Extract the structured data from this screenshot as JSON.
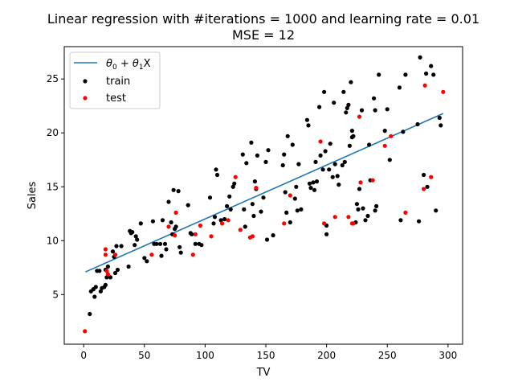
{
  "chart_data": {
    "type": "scatter",
    "title_line1": "Linear regression with #iterations = 1000 and learning rate = 0.01",
    "title_line2": "MSE = 12",
    "xlabel": "TV",
    "ylabel": "Sales",
    "xlim": [
      -16,
      312
    ],
    "ylim": [
      0.4,
      28
    ],
    "xticks": [
      0,
      50,
      100,
      150,
      200,
      250,
      300
    ],
    "yticks": [
      5,
      10,
      15,
      20,
      25
    ],
    "grid": false,
    "legend_position": "top-left",
    "fit_line": {
      "label": "θ0 + θ1X",
      "color": "#1f77b4",
      "points": [
        [
          1.4,
          7.1
        ],
        [
          296,
          21.8
        ]
      ]
    },
    "series": [
      {
        "name": "train",
        "color": "#000000",
        "points": [
          [
            5,
            3.2
          ],
          [
            6,
            5.3
          ],
          [
            8,
            5.5
          ],
          [
            9,
            4.8
          ],
          [
            10,
            5.7
          ],
          [
            11,
            7.2
          ],
          [
            13,
            7.2
          ],
          [
            14,
            5.3
          ],
          [
            15,
            5.6
          ],
          [
            17,
            5.7
          ],
          [
            18,
            7.3
          ],
          [
            18,
            5.9
          ],
          [
            19,
            6.6
          ],
          [
            20,
            7.6
          ],
          [
            22,
            6.6
          ],
          [
            24,
            9.0
          ],
          [
            25,
            8.5
          ],
          [
            26,
            7.0
          ],
          [
            27,
            9.5
          ],
          [
            28,
            7.3
          ],
          [
            31,
            9.5
          ],
          [
            37,
            7.6
          ],
          [
            38,
            10.9
          ],
          [
            39,
            10.7
          ],
          [
            40,
            10.8
          ],
          [
            42,
            9.6
          ],
          [
            43,
            10.4
          ],
          [
            44,
            10.1
          ],
          [
            47,
            11.6
          ],
          [
            50,
            8.4
          ],
          [
            52,
            8.1
          ],
          [
            57,
            11.8
          ],
          [
            58,
            9.7
          ],
          [
            60,
            9.7
          ],
          [
            63,
            9.7
          ],
          [
            64,
            8.6
          ],
          [
            65,
            11.9
          ],
          [
            67,
            9.7
          ],
          [
            68,
            9.2
          ],
          [
            70,
            13.6
          ],
          [
            72,
            11.7
          ],
          [
            73,
            10.6
          ],
          [
            74,
            14.7
          ],
          [
            75,
            11.1
          ],
          [
            76,
            11.3
          ],
          [
            78,
            14.6
          ],
          [
            79,
            9.4
          ],
          [
            80,
            8.9
          ],
          [
            86,
            13.3
          ],
          [
            88,
            10.7
          ],
          [
            89,
            10.6
          ],
          [
            92,
            9.7
          ],
          [
            95,
            9.7
          ],
          [
            97,
            9.6
          ],
          [
            104,
            14.0
          ],
          [
            107,
            11.6
          ],
          [
            108,
            12.2
          ],
          [
            109,
            16.6
          ],
          [
            110,
            16.1
          ],
          [
            113,
            11.9
          ],
          [
            116,
            12.0
          ],
          [
            118,
            13.2
          ],
          [
            120,
            14.1
          ],
          [
            121,
            12.9
          ],
          [
            123,
            15.0
          ],
          [
            124,
            15.3
          ],
          [
            131,
            18.0
          ],
          [
            132,
            12.9
          ],
          [
            133,
            11.3
          ],
          [
            134,
            17.2
          ],
          [
            138,
            19.1
          ],
          [
            139,
            13.4
          ],
          [
            140,
            12.3
          ],
          [
            141,
            15.5
          ],
          [
            142,
            14.8
          ],
          [
            143,
            17.9
          ],
          [
            146,
            12.7
          ],
          [
            148,
            14.0
          ],
          [
            150,
            17.3
          ],
          [
            151,
            10.1
          ],
          [
            152,
            18.4
          ],
          [
            156,
            10.5
          ],
          [
            164,
            17.0
          ],
          [
            165,
            18.0
          ],
          [
            166,
            14.5
          ],
          [
            167,
            12.6
          ],
          [
            168,
            19.7
          ],
          [
            170,
            11.7
          ],
          [
            172,
            18.9
          ],
          [
            174,
            13.9
          ],
          [
            175,
            15.0
          ],
          [
            176,
            12.8
          ],
          [
            177,
            17.1
          ],
          [
            179,
            12.9
          ],
          [
            184,
            21.2
          ],
          [
            185,
            20.7
          ],
          [
            186,
            15.3
          ],
          [
            187,
            14.9
          ],
          [
            189,
            15.4
          ],
          [
            190,
            14.7
          ],
          [
            191,
            17.3
          ],
          [
            192,
            15.5
          ],
          [
            194,
            22.4
          ],
          [
            195,
            17.9
          ],
          [
            197,
            16.6
          ],
          [
            198,
            23.8
          ],
          [
            199,
            18.3
          ],
          [
            200,
            10.6
          ],
          [
            200,
            11.4
          ],
          [
            202,
            16.6
          ],
          [
            203,
            19.0
          ],
          [
            205,
            15.9
          ],
          [
            206,
            22.8
          ],
          [
            207,
            17.1
          ],
          [
            209,
            16.0
          ],
          [
            210,
            15.2
          ],
          [
            213,
            17.0
          ],
          [
            214,
            23.8
          ],
          [
            215,
            17.3
          ],
          [
            216,
            21.9
          ],
          [
            217,
            22.3
          ],
          [
            218,
            22.6
          ],
          [
            219,
            18.8
          ],
          [
            220,
            24.7
          ],
          [
            221,
            19.6
          ],
          [
            221,
            20.2
          ],
          [
            222,
            19.7
          ],
          [
            224,
            11.7
          ],
          [
            225,
            13.4
          ],
          [
            226,
            12.9
          ],
          [
            227,
            14.8
          ],
          [
            229,
            22.1
          ],
          [
            230,
            13.0
          ],
          [
            232,
            11.9
          ],
          [
            234,
            12.3
          ],
          [
            235,
            18.9
          ],
          [
            236,
            15.6
          ],
          [
            239,
            23.2
          ],
          [
            240,
            22.1
          ],
          [
            240,
            12.8
          ],
          [
            241,
            13.2
          ],
          [
            243,
            25.4
          ],
          [
            248,
            20.2
          ],
          [
            250,
            22.2
          ],
          [
            252,
            17.5
          ],
          [
            260,
            24.2
          ],
          [
            261,
            11.9
          ],
          [
            263,
            20.1
          ],
          [
            265,
            25.4
          ],
          [
            275,
            20.8
          ],
          [
            276,
            11.8
          ],
          [
            277,
            27.0
          ],
          [
            280,
            16.1
          ],
          [
            282,
            25.5
          ],
          [
            283,
            15.0
          ],
          [
            286,
            26.2
          ],
          [
            288,
            25.4
          ],
          [
            290,
            12.8
          ],
          [
            293,
            21.4
          ],
          [
            294,
            20.7
          ]
        ]
      },
      {
        "name": "test",
        "color": "#ff0000",
        "points": [
          [
            1,
            1.6
          ],
          [
            18,
            8.7
          ],
          [
            18,
            9.2
          ],
          [
            19,
            7.2
          ],
          [
            20,
            6.9
          ],
          [
            26,
            8.7
          ],
          [
            56,
            8.7
          ],
          [
            70,
            11.3
          ],
          [
            75,
            10.5
          ],
          [
            76,
            12.6
          ],
          [
            90,
            8.7
          ],
          [
            92,
            10.6
          ],
          [
            96,
            11.4
          ],
          [
            105,
            10.4
          ],
          [
            114,
            11.6
          ],
          [
            119,
            11.9
          ],
          [
            125,
            15.9
          ],
          [
            129,
            11.0
          ],
          [
            137,
            10.3
          ],
          [
            139,
            10.4
          ],
          [
            142,
            14.9
          ],
          [
            165,
            11.6
          ],
          [
            170,
            14.2
          ],
          [
            195,
            19.2
          ],
          [
            198,
            11.6
          ],
          [
            207,
            12.2
          ],
          [
            218,
            12.2
          ],
          [
            221,
            11.6
          ],
          [
            222,
            11.6
          ],
          [
            227,
            21.5
          ],
          [
            228,
            15.4
          ],
          [
            238,
            15.6
          ],
          [
            248,
            18.8
          ],
          [
            253,
            19.7
          ],
          [
            265,
            12.6
          ],
          [
            280,
            14.8
          ],
          [
            281,
            24.4
          ],
          [
            286,
            15.9
          ],
          [
            296,
            23.8
          ]
        ]
      }
    ]
  }
}
